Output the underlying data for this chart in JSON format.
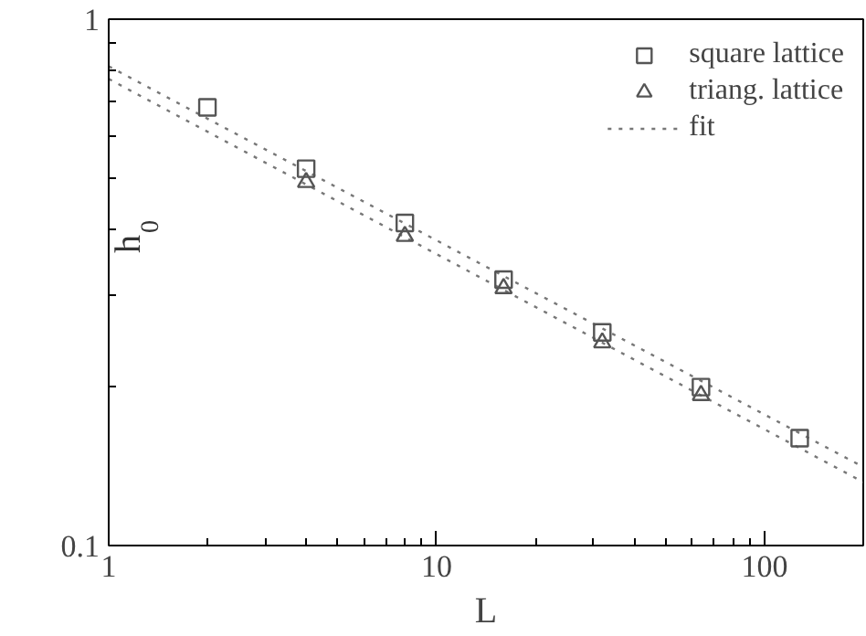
{
  "chart_data": {
    "type": "scatter",
    "xlabel": "L",
    "ylabel": "h$_{0}$",
    "log": "xy",
    "grid": false,
    "legend": "top right",
    "xlim": [
      1,
      200
    ],
    "ylim": [
      0.1,
      1
    ],
    "xticks": [
      1,
      {
        "value": 2,
        "label": null
      },
      {
        "value": 3,
        "label": null
      },
      {
        "value": 4,
        "label": null
      },
      {
        "value": 5,
        "label": null
      },
      {
        "value": 6,
        "label": null
      },
      {
        "value": 7,
        "label": null
      },
      {
        "value": 8,
        "label": null
      },
      {
        "value": 9,
        "label": null
      },
      10,
      {
        "value": 20,
        "label": null
      },
      {
        "value": 30,
        "label": null
      },
      {
        "value": 40,
        "label": null
      },
      {
        "value": 50,
        "label": null
      },
      {
        "value": 60,
        "label": null
      },
      {
        "value": 70,
        "label": null
      },
      {
        "value": 80,
        "label": null
      },
      {
        "value": 90,
        "label": null
      },
      100,
      {
        "value": 200,
        "label": null
      }
    ],
    "yticks": [
      0.1,
      {
        "value": 0.2,
        "label": null
      },
      {
        "value": 0.3,
        "label": null
      },
      {
        "value": 0.4,
        "label": null
      },
      {
        "value": 0.5,
        "label": null
      },
      {
        "value": 0.6,
        "label": null
      },
      {
        "value": 0.7,
        "label": null
      },
      {
        "value": 0.8,
        "label": null
      },
      {
        "value": 0.9,
        "label": null
      },
      1
    ],
    "series": [
      {
        "name": "square lattice",
        "marker": "square",
        "color": "#555555",
        "x": [
          2,
          4,
          8,
          16,
          32,
          64,
          128
        ],
        "values": [
          0.68,
          0.52,
          0.41,
          0.32,
          0.254,
          0.2,
          0.16
        ]
      },
      {
        "name": "triang. lattice",
        "marker": "triangle",
        "color": "#555555",
        "x": [
          4,
          8,
          16,
          32,
          64
        ],
        "values": [
          0.49,
          0.387,
          0.308,
          0.243,
          0.193
        ]
      },
      {
        "name": "fit",
        "type": "line",
        "line_style": "dotted",
        "color": "#777777",
        "x": [
          1,
          200
        ],
        "values": [
          0.814,
          0.141
        ]
      },
      {
        "type": "line",
        "line_style": "dotted",
        "color": "#777777",
        "x": [
          1,
          200
        ],
        "values": [
          0.77,
          0.132
        ]
      }
    ]
  }
}
